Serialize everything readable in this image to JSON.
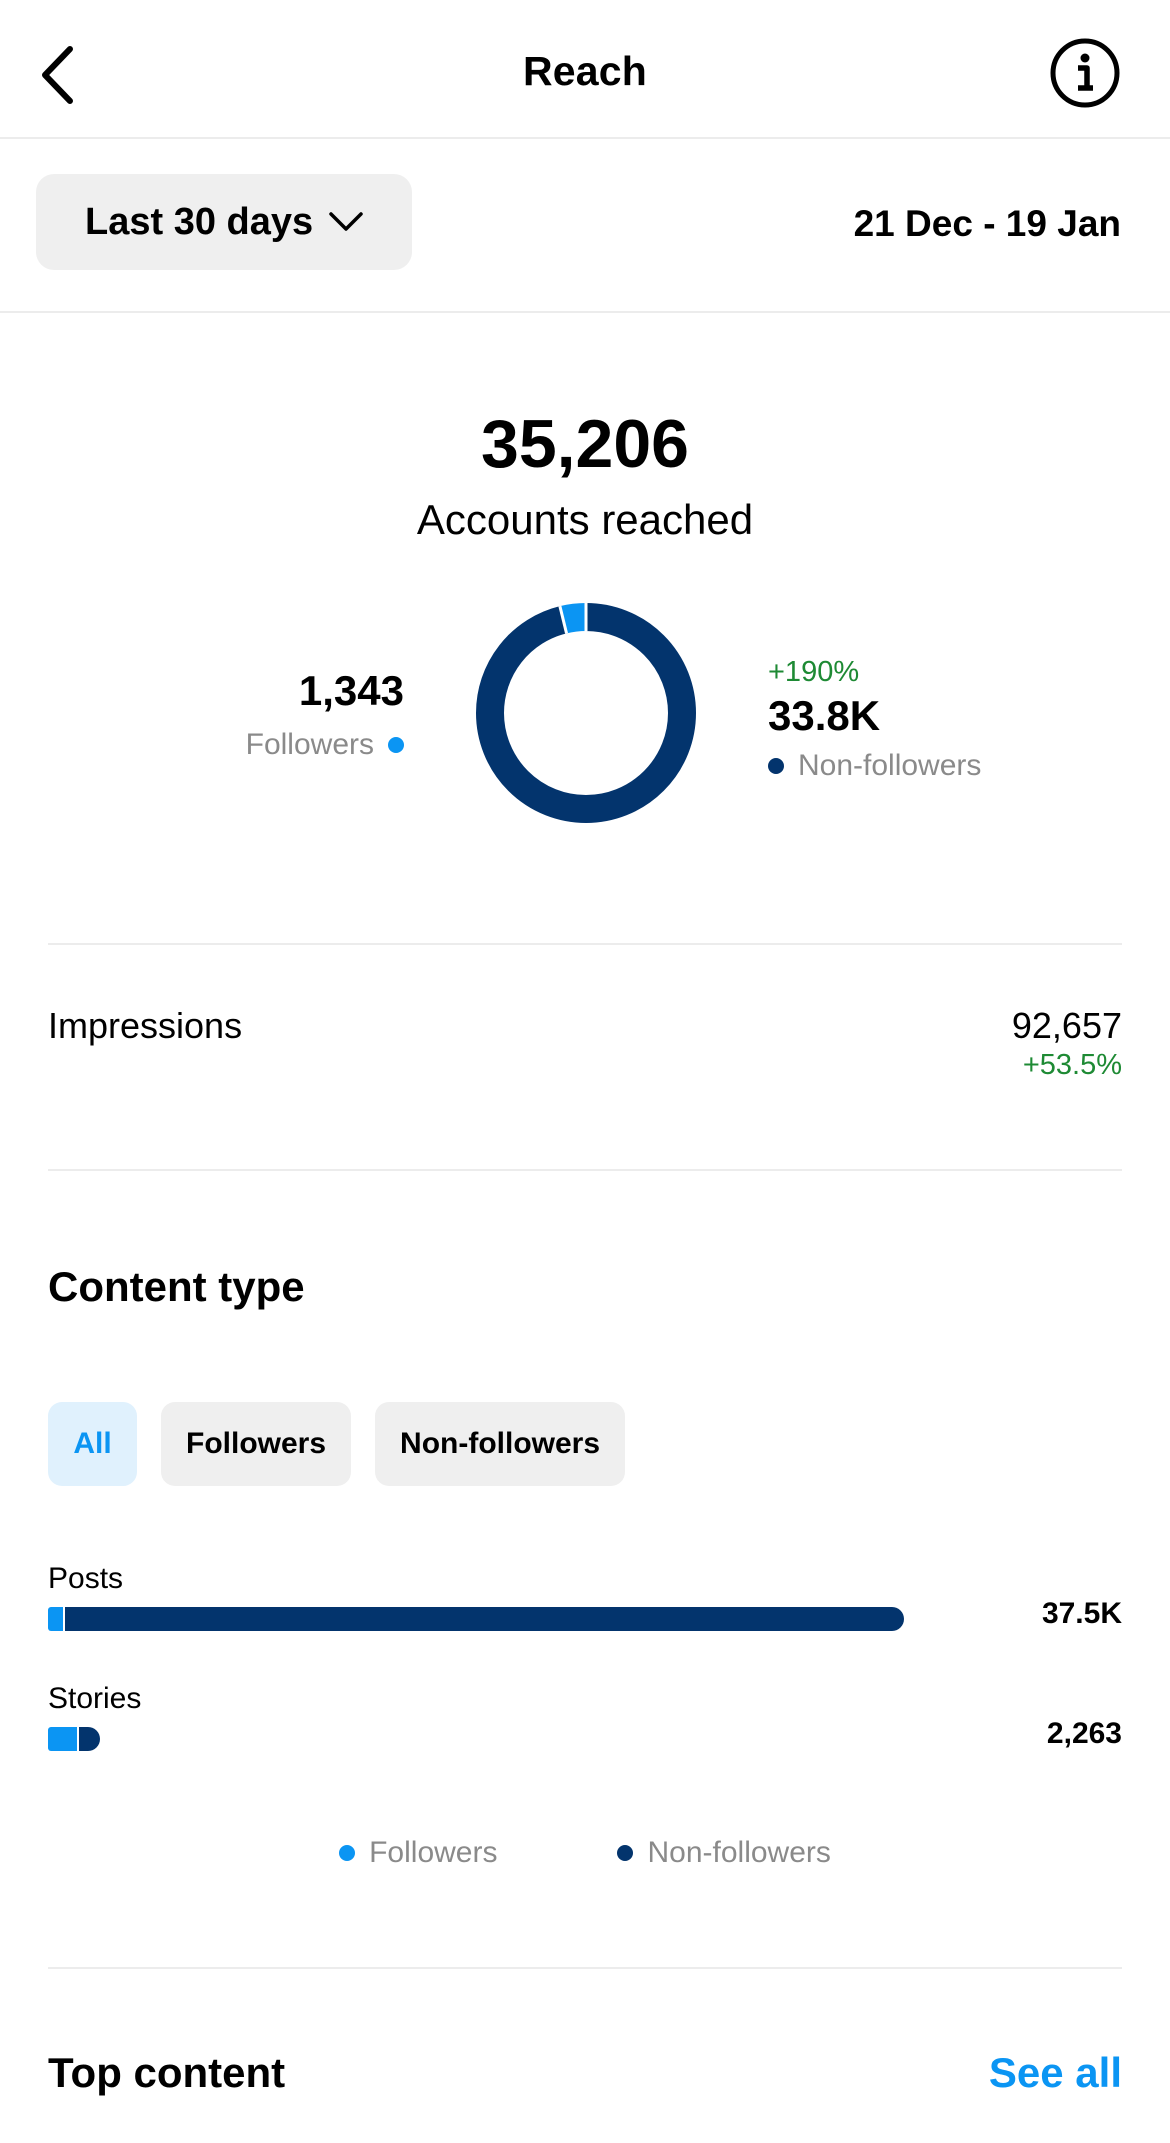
{
  "header": {
    "title": "Reach",
    "back_icon": "chevron-left-icon",
    "info_icon": "info-icon"
  },
  "period": {
    "selected": "Last 30 days",
    "date_range": "21 Dec - 19 Jan"
  },
  "summary": {
    "total_value": "35,206",
    "total_label": "Accounts reached",
    "followers": {
      "value": "1,343",
      "label": "Followers"
    },
    "non_followers": {
      "change": "+190%",
      "value": "33.8K",
      "label": "Non-followers"
    }
  },
  "impressions": {
    "label": "Impressions",
    "value": "92,657",
    "change": "+53.5%"
  },
  "content_type": {
    "title": "Content type",
    "filters": [
      {
        "label": "All",
        "active": true
      },
      {
        "label": "Followers",
        "active": false
      },
      {
        "label": "Non-followers",
        "active": false
      }
    ],
    "rows": [
      {
        "label": "Posts",
        "value": "37.5K"
      },
      {
        "label": "Stories",
        "value": "2,263"
      }
    ],
    "legend": [
      "Followers",
      "Non-followers"
    ]
  },
  "top_content": {
    "title": "Top content",
    "see_all": "See all"
  },
  "colors": {
    "followers": "#0b95f3",
    "non_followers": "#03346d",
    "positive": "#1e8a34",
    "link": "#0b95f3"
  },
  "chart_data": [
    {
      "type": "pie",
      "labels": [
        "Followers",
        "Non-followers"
      ],
      "values": [
        1343,
        33863
      ]
    },
    {
      "type": "bar",
      "categories": [
        "Posts",
        "Stories"
      ],
      "series": [
        {
          "name": "Followers",
          "values": [
            750,
            1350
          ]
        },
        {
          "name": "Non-followers",
          "values": [
            36750,
            913
          ]
        }
      ]
    }
  ]
}
